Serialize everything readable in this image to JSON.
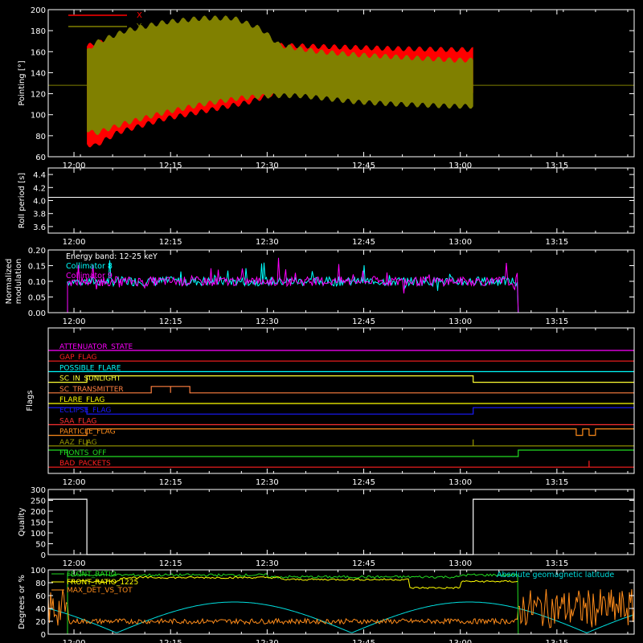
{
  "chart_data": [
    {
      "type": "area",
      "ylabel": "Pointing [°]",
      "ylim": [
        60,
        200
      ],
      "yticks": [
        60,
        80,
        100,
        120,
        140,
        160,
        180,
        200
      ],
      "xlim": [
        0,
        100
      ],
      "xticks": [
        "12:00",
        "12:15",
        "12:30",
        "12:45",
        "13:00",
        "13:15"
      ],
      "legend": [
        "X",
        "Y"
      ],
      "legend_position": "top-left",
      "series": [
        {
          "name": "X",
          "color": "#ff0000",
          "data_start": "12:02",
          "data_end": "13:02",
          "upper": [
            [
              0,
              165
            ],
            [
              2,
              168
            ],
            [
              8,
              172
            ],
            [
              20,
              176
            ],
            [
              30,
              174
            ],
            [
              42,
              168
            ],
            [
              50,
              166
            ],
            [
              60,
              165
            ],
            [
              70,
              164
            ],
            [
              80,
              163
            ],
            [
              95,
              162
            ],
            [
              100,
              162
            ]
          ],
          "lower": [
            [
              0,
              72
            ],
            [
              2,
              70
            ],
            [
              8,
              83
            ],
            [
              20,
              96
            ],
            [
              30,
              103
            ],
            [
              42,
              112
            ],
            [
              50,
              122
            ],
            [
              60,
              128
            ],
            [
              70,
              130
            ],
            [
              80,
              128
            ],
            [
              95,
              123
            ],
            [
              100,
              123
            ]
          ]
        },
        {
          "name": "Y",
          "color": "#808000",
          "data_start": "12:02",
          "data_end": "13:02",
          "upper": [
            [
              0,
              160
            ],
            [
              2,
              168
            ],
            [
              10,
              180
            ],
            [
              20,
              188
            ],
            [
              30,
              192
            ],
            [
              38,
              192
            ],
            [
              45,
              182
            ],
            [
              50,
              166
            ],
            [
              60,
              160
            ],
            [
              70,
              157
            ],
            [
              80,
              155
            ],
            [
              95,
              152
            ],
            [
              100,
              152
            ]
          ],
          "lower": [
            [
              0,
              86
            ],
            [
              2,
              82
            ],
            [
              10,
              92
            ],
            [
              20,
              102
            ],
            [
              30,
              110
            ],
            [
              40,
              116
            ],
            [
              48,
              118
            ],
            [
              55,
              118
            ],
            [
              60,
              116
            ],
            [
              70,
              112
            ],
            [
              80,
              110
            ],
            [
              95,
              108
            ],
            [
              100,
              108
            ]
          ]
        }
      ],
      "reference_line": {
        "value": 128,
        "color": "#808000"
      }
    },
    {
      "type": "line",
      "ylabel": "Roll period [s]",
      "ylim": [
        3.5,
        4.5
      ],
      "yticks": [
        "3.6",
        "3.8",
        "4.0",
        "4.2",
        "4.4"
      ],
      "series": [
        {
          "name": "",
          "color": "#ffffff",
          "values": [
            [
              0,
              4.05
            ],
            [
              100,
              4.05
            ]
          ]
        }
      ]
    },
    {
      "type": "line",
      "ylabel": "Normalized modulation",
      "ylim": [
        0,
        0.2
      ],
      "yticks": [
        "0.00",
        "0.05",
        "0.10",
        "0.15",
        "0.20"
      ],
      "annotation": "Energy band: 12-25 keY",
      "legend": [
        "Collimator 8",
        "Collimator 9"
      ],
      "series": [
        {
          "name": "Collimator 8",
          "color": "#00ffff",
          "start": "11:59",
          "end": "13:09",
          "mean": 0.1
        },
        {
          "name": "Collimator 9",
          "color": "#ff00ff",
          "start": "11:59",
          "end": "13:09",
          "mean": 0.1
        }
      ]
    },
    {
      "type": "line",
      "ylabel": "Flags",
      "flags": [
        {
          "name": "ATTENUATOR_STATE",
          "color": "#ff00ff"
        },
        {
          "name": "GAP_FLAG",
          "color": "#ff2020"
        },
        {
          "name": "POSSIBLE_FLARE",
          "color": "#00ffff"
        },
        {
          "name": "SC_IN_SUNLIGHT",
          "color": "#ffff33"
        },
        {
          "name": "SC_TRANSMITTER",
          "color": "#ff8040"
        },
        {
          "name": "FLARE_FLAG",
          "color": "#ffff00"
        },
        {
          "name": "ECLIPSE_FLAG",
          "color": "#1a1aff"
        },
        {
          "name": "SAA_FLAG",
          "color": "#ff3030"
        },
        {
          "name": "PARTICLE_FLAG",
          "color": "#ff8c1a"
        },
        {
          "name": "AAZ_FLAG",
          "color": "#999900"
        },
        {
          "name": "FRONTS_OFF",
          "color": "#22dd22"
        },
        {
          "name": "BAD_PACKETS",
          "color": "#ff2020"
        }
      ]
    },
    {
      "type": "line",
      "ylabel": "Quality",
      "ylim": [
        0,
        300
      ],
      "yticks": [
        "0",
        "50",
        "100",
        "150",
        "200",
        "250",
        "300"
      ],
      "series": [
        {
          "name": "",
          "color": "#ffffff",
          "values": [
            [
              "11:56",
              255
            ],
            [
              "12:02",
              255
            ],
            [
              "12:02",
              0
            ],
            [
              "13:02",
              0
            ],
            [
              "13:02",
              255
            ],
            [
              "13:27",
              255
            ]
          ]
        }
      ]
    },
    {
      "type": "line",
      "ylabel": "Degrees or %",
      "ylim": [
        0,
        100
      ],
      "yticks": [
        "0",
        "20",
        "40",
        "60",
        "80",
        "100"
      ],
      "legend": [
        "FRONT_RATIO",
        "FRONT_RATIO_1225",
        "MAX_DET_VS_TOT",
        "Absolute geomagnetic latitude"
      ],
      "series": [
        {
          "name": "FRONT_RATIO",
          "color": "#22dd22"
        },
        {
          "name": "FRONT_RATIO_1225",
          "color": "#ffff00"
        },
        {
          "name": "MAX_DET_VS_TOT",
          "color": "#ff8c1a"
        },
        {
          "name": "Absolute geomagnetic latitude",
          "color": "#00dddd"
        }
      ]
    }
  ]
}
